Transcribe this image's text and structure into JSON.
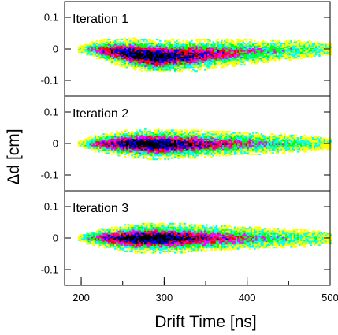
{
  "chart_data": {
    "type": "heatmap",
    "xlabel": "Drift Time [ns]",
    "ylabel": "Δd [cm]",
    "xlim": [
      180,
      500
    ],
    "x_ticks": [
      200,
      300,
      400,
      500
    ],
    "x_tick_labels": [
      "200",
      "300",
      "400",
      "500"
    ],
    "ylim": [
      -0.15,
      0.15
    ],
    "y_ticks": [
      0.1,
      0,
      -0.1
    ],
    "y_tick_labels": [
      "0.1",
      "0",
      "-0.1"
    ],
    "grid": false,
    "color_scale": [
      "#ffff00",
      "#00ffff",
      "#00ff00",
      "#ff00ff",
      "#ff0000",
      "#0000ff",
      "#000000"
    ],
    "panels": [
      {
        "label": "Iteration 1",
        "profile": [
          {
            "x": 200,
            "center": 0.0,
            "halfwidth": 0.006,
            "density": 0.1
          },
          {
            "x": 210,
            "center": 0.0,
            "halfwidth": 0.012,
            "density": 0.4
          },
          {
            "x": 230,
            "center": -0.005,
            "halfwidth": 0.02,
            "density": 0.7
          },
          {
            "x": 260,
            "center": -0.015,
            "halfwidth": 0.026,
            "density": 0.95
          },
          {
            "x": 290,
            "center": -0.025,
            "halfwidth": 0.03,
            "density": 1.0
          },
          {
            "x": 330,
            "center": -0.02,
            "halfwidth": 0.028,
            "density": 0.8
          },
          {
            "x": 380,
            "center": -0.012,
            "halfwidth": 0.023,
            "density": 0.55
          },
          {
            "x": 430,
            "center": -0.006,
            "halfwidth": 0.018,
            "density": 0.35
          },
          {
            "x": 480,
            "center": 0.0,
            "halfwidth": 0.014,
            "density": 0.2
          },
          {
            "x": 495,
            "center": 0.0,
            "halfwidth": 0.01,
            "density": 0.08
          }
        ]
      },
      {
        "label": "Iteration 2",
        "profile": [
          {
            "x": 200,
            "center": 0.0,
            "halfwidth": 0.006,
            "density": 0.1
          },
          {
            "x": 210,
            "center": 0.0,
            "halfwidth": 0.012,
            "density": 0.4
          },
          {
            "x": 230,
            "center": 0.0,
            "halfwidth": 0.018,
            "density": 0.7
          },
          {
            "x": 260,
            "center": 0.0,
            "halfwidth": 0.024,
            "density": 0.95
          },
          {
            "x": 290,
            "center": -0.003,
            "halfwidth": 0.026,
            "density": 1.0
          },
          {
            "x": 330,
            "center": -0.002,
            "halfwidth": 0.024,
            "density": 0.8
          },
          {
            "x": 380,
            "center": 0.0,
            "halfwidth": 0.02,
            "density": 0.55
          },
          {
            "x": 430,
            "center": 0.0,
            "halfwidth": 0.017,
            "density": 0.35
          },
          {
            "x": 480,
            "center": 0.0,
            "halfwidth": 0.013,
            "density": 0.2
          },
          {
            "x": 495,
            "center": 0.0,
            "halfwidth": 0.01,
            "density": 0.08
          }
        ]
      },
      {
        "label": "Iteration 3",
        "profile": [
          {
            "x": 200,
            "center": 0.0,
            "halfwidth": 0.006,
            "density": 0.1
          },
          {
            "x": 210,
            "center": 0.0,
            "halfwidth": 0.012,
            "density": 0.4
          },
          {
            "x": 230,
            "center": 0.0,
            "halfwidth": 0.018,
            "density": 0.7
          },
          {
            "x": 260,
            "center": 0.0,
            "halfwidth": 0.024,
            "density": 0.95
          },
          {
            "x": 290,
            "center": 0.0,
            "halfwidth": 0.026,
            "density": 1.0
          },
          {
            "x": 330,
            "center": 0.0,
            "halfwidth": 0.024,
            "density": 0.8
          },
          {
            "x": 380,
            "center": 0.0,
            "halfwidth": 0.02,
            "density": 0.55
          },
          {
            "x": 430,
            "center": 0.0,
            "halfwidth": 0.017,
            "density": 0.35
          },
          {
            "x": 480,
            "center": 0.0,
            "halfwidth": 0.013,
            "density": 0.2
          },
          {
            "x": 495,
            "center": 0.0,
            "halfwidth": 0.01,
            "density": 0.08
          }
        ]
      }
    ]
  }
}
